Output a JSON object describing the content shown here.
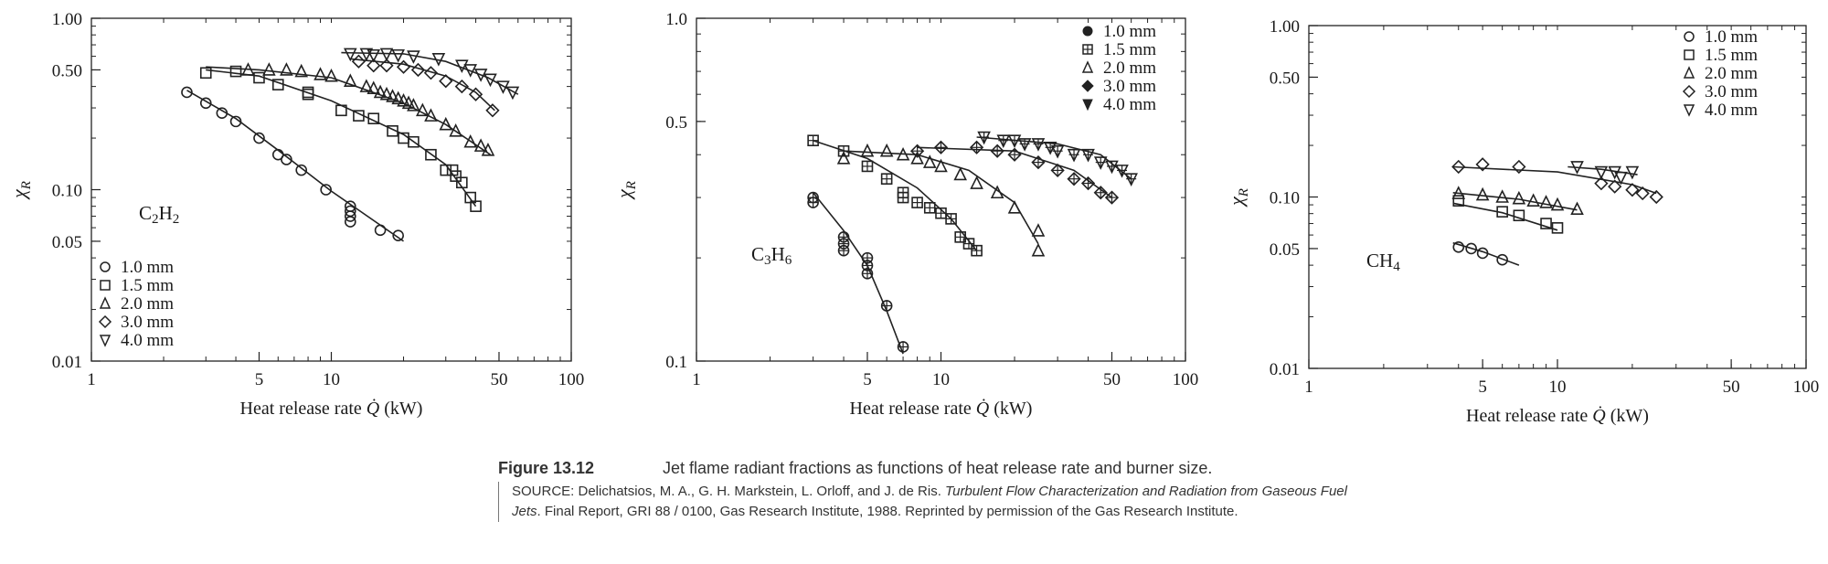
{
  "chart_data": [
    {
      "type": "scatter",
      "label": "C₂H₂",
      "xlabel": "Heat release rate Q̇ (kW)",
      "ylabel": "χR",
      "xlim": [
        1,
        100
      ],
      "ylim": [
        0.01,
        1
      ],
      "xscale": "log",
      "yscale": "log",
      "xticks": [
        1,
        5,
        10,
        50,
        100
      ],
      "xtick_labels": [
        "1",
        "5",
        "10",
        "50",
        "100"
      ],
      "yticks": [
        0.01,
        0.05,
        0.1,
        0.5,
        1.0
      ],
      "ytick_labels": [
        "0.01",
        "0.05",
        "0.10",
        "0.50",
        "1.00"
      ],
      "legend_position": "bottom-left",
      "grid": false,
      "series": [
        {
          "name": "4.0 mm",
          "marker": "triangle-down",
          "x": [
            12,
            14,
            15,
            17,
            19,
            22,
            28,
            35,
            38,
            42,
            46,
            52,
            57
          ],
          "y": [
            0.62,
            0.62,
            0.61,
            0.62,
            0.61,
            0.6,
            0.58,
            0.53,
            0.5,
            0.47,
            0.44,
            0.4,
            0.37
          ],
          "fit": [
            [
              11,
              0.63
            ],
            [
              20,
              0.62
            ],
            [
              30,
              0.56
            ],
            [
              45,
              0.45
            ],
            [
              60,
              0.36
            ]
          ]
        },
        {
          "name": "3.0 mm",
          "marker": "diamond",
          "x": [
            13,
            15,
            17,
            20,
            23,
            26,
            30,
            35,
            40,
            47
          ],
          "y": [
            0.56,
            0.53,
            0.53,
            0.52,
            0.5,
            0.48,
            0.43,
            0.4,
            0.36,
            0.29
          ],
          "fit": [
            [
              12,
              0.58
            ],
            [
              20,
              0.54
            ],
            [
              30,
              0.46
            ],
            [
              40,
              0.37
            ],
            [
              48,
              0.29
            ]
          ]
        },
        {
          "name": "2.0 mm",
          "marker": "triangle-up",
          "x": [
            4.5,
            5.5,
            6.5,
            7.5,
            9,
            10,
            12,
            14,
            15,
            16,
            17,
            18,
            19,
            20,
            21,
            22,
            24,
            26,
            30,
            33,
            38,
            42,
            45
          ],
          "y": [
            0.5,
            0.5,
            0.5,
            0.49,
            0.47,
            0.46,
            0.43,
            0.4,
            0.39,
            0.37,
            0.36,
            0.35,
            0.34,
            0.33,
            0.32,
            0.31,
            0.29,
            0.27,
            0.24,
            0.22,
            0.19,
            0.18,
            0.17
          ],
          "fit": [
            [
              3,
              0.52
            ],
            [
              5,
              0.5
            ],
            [
              10,
              0.45
            ],
            [
              20,
              0.32
            ],
            [
              30,
              0.24
            ],
            [
              46,
              0.16
            ]
          ]
        },
        {
          "name": "1.5 mm",
          "marker": "square",
          "x": [
            3,
            4,
            5,
            6,
            8,
            8,
            11,
            13,
            15,
            18,
            20,
            22,
            26,
            30,
            32,
            33,
            35,
            38,
            40
          ],
          "y": [
            0.48,
            0.49,
            0.45,
            0.41,
            0.36,
            0.37,
            0.29,
            0.27,
            0.26,
            0.22,
            0.2,
            0.19,
            0.16,
            0.13,
            0.13,
            0.12,
            0.11,
            0.09,
            0.08
          ],
          "fit": [
            [
              3,
              0.5
            ],
            [
              5,
              0.46
            ],
            [
              10,
              0.33
            ],
            [
              20,
              0.21
            ],
            [
              30,
              0.14
            ],
            [
              40,
              0.08
            ]
          ]
        },
        {
          "name": "1.0 mm",
          "marker": "circle",
          "x": [
            2.5,
            3,
            3.5,
            4,
            5,
            6,
            6.5,
            7.5,
            9.5,
            12,
            12,
            12,
            12,
            16,
            19
          ],
          "y": [
            0.37,
            0.32,
            0.28,
            0.25,
            0.2,
            0.16,
            0.15,
            0.13,
            0.1,
            0.08,
            0.075,
            0.07,
            0.065,
            0.058,
            0.054
          ],
          "fit": [
            [
              2.5,
              0.38
            ],
            [
              4,
              0.26
            ],
            [
              6,
              0.17
            ],
            [
              10,
              0.098
            ],
            [
              20,
              0.05
            ]
          ]
        }
      ]
    },
    {
      "type": "scatter",
      "label": "C₃H₆",
      "xlabel": "Heat release rate Q̇ (kW)",
      "ylabel": "χR",
      "xlim": [
        1,
        100
      ],
      "ylim": [
        0.1,
        1
      ],
      "xscale": "log",
      "yscale": "log",
      "xticks": [
        1,
        5,
        10,
        50,
        100
      ],
      "xtick_labels": [
        "1",
        "5",
        "10",
        "50",
        "100"
      ],
      "yticks": [
        0.1,
        0.5,
        1.0
      ],
      "ytick_labels": [
        "0.1",
        "0.5",
        "1.0"
      ],
      "legend_position": "top-right",
      "grid": false,
      "series": [
        {
          "name": "1.0 mm",
          "marker": "circle-cross",
          "x": [
            3,
            3,
            4,
            4,
            4,
            5,
            5,
            5,
            6,
            7
          ],
          "y": [
            0.3,
            0.29,
            0.23,
            0.22,
            0.21,
            0.2,
            0.19,
            0.18,
            0.145,
            0.11
          ],
          "fit": [
            [
              3,
              0.31
            ],
            [
              4,
              0.24
            ],
            [
              5,
              0.19
            ],
            [
              6,
              0.14
            ],
            [
              7,
              0.105
            ]
          ]
        },
        {
          "name": "1.5 mm",
          "marker": "square-cross",
          "x": [
            3,
            4,
            5,
            6,
            7,
            7,
            8,
            9,
            10,
            11,
            12,
            13,
            14
          ],
          "y": [
            0.44,
            0.41,
            0.37,
            0.34,
            0.31,
            0.3,
            0.29,
            0.28,
            0.27,
            0.26,
            0.23,
            0.22,
            0.21
          ],
          "fit": [
            [
              3,
              0.44
            ],
            [
              5,
              0.39
            ],
            [
              8,
              0.32
            ],
            [
              11,
              0.26
            ],
            [
              14,
              0.21
            ]
          ]
        },
        {
          "name": "2.0 mm",
          "marker": "triangle-up",
          "x": [
            4,
            5,
            6,
            7,
            8,
            9,
            10,
            12,
            14,
            17,
            20,
            25,
            25
          ],
          "y": [
            0.39,
            0.41,
            0.41,
            0.4,
            0.39,
            0.38,
            0.37,
            0.35,
            0.33,
            0.31,
            0.28,
            0.24,
            0.21
          ],
          "fit": [
            [
              4,
              0.41
            ],
            [
              8,
              0.4
            ],
            [
              13,
              0.36
            ],
            [
              20,
              0.29
            ],
            [
              25,
              0.22
            ]
          ]
        },
        {
          "name": "3.0 mm",
          "marker": "diamond-cross",
          "x": [
            8,
            10,
            14,
            17,
            20,
            25,
            30,
            35,
            40,
            45,
            50
          ],
          "y": [
            0.41,
            0.42,
            0.42,
            0.41,
            0.4,
            0.38,
            0.36,
            0.34,
            0.33,
            0.31,
            0.3
          ],
          "fit": [
            [
              8,
              0.42
            ],
            [
              20,
              0.41
            ],
            [
              35,
              0.36
            ],
            [
              50,
              0.3
            ]
          ]
        },
        {
          "name": "4.0 mm",
          "marker": "triangle-down-cross",
          "x": [
            15,
            18,
            20,
            22,
            25,
            28,
            30,
            35,
            40,
            45,
            50,
            55,
            60
          ],
          "y": [
            0.45,
            0.44,
            0.44,
            0.43,
            0.43,
            0.42,
            0.41,
            0.4,
            0.4,
            0.38,
            0.37,
            0.36,
            0.34
          ],
          "fit": [
            [
              14,
              0.45
            ],
            [
              30,
              0.43
            ],
            [
              45,
              0.4
            ],
            [
              60,
              0.34
            ]
          ]
        }
      ]
    },
    {
      "type": "scatter",
      "label": "CH₄",
      "xlabel": "Heat release rate Q̇ (kW)",
      "ylabel": "χR",
      "xlim": [
        1,
        100
      ],
      "ylim": [
        0.01,
        1
      ],
      "xscale": "log",
      "yscale": "log",
      "xticks": [
        1,
        5,
        10,
        50,
        100
      ],
      "xtick_labels": [
        "1",
        "5",
        "10",
        "50",
        "100"
      ],
      "yticks": [
        0.01,
        0.05,
        0.1,
        0.5,
        1.0
      ],
      "ytick_labels": [
        "0.01",
        "0.05",
        "0.10",
        "0.50",
        "1.00"
      ],
      "legend_position": "top-right",
      "grid": false,
      "series": [
        {
          "name": "1.0 mm",
          "marker": "circle",
          "x": [
            4,
            4.5,
            5,
            6
          ],
          "y": [
            0.051,
            0.05,
            0.047,
            0.043
          ],
          "fit": [
            [
              3.8,
              0.054
            ],
            [
              5,
              0.048
            ],
            [
              7,
              0.04
            ]
          ]
        },
        {
          "name": "1.5 mm",
          "marker": "square",
          "x": [
            4,
            6,
            7,
            9,
            10
          ],
          "y": [
            0.095,
            0.082,
            0.078,
            0.07,
            0.066
          ],
          "fit": [
            [
              3.8,
              0.092
            ],
            [
              6,
              0.081
            ],
            [
              10,
              0.064
            ]
          ]
        },
        {
          "name": "2.0 mm",
          "marker": "triangle-up",
          "x": [
            4,
            5,
            6,
            7,
            8,
            9,
            10,
            12
          ],
          "y": [
            0.105,
            0.103,
            0.1,
            0.098,
            0.095,
            0.093,
            0.09,
            0.085
          ],
          "fit": [
            [
              3.8,
              0.106
            ],
            [
              7,
              0.097
            ],
            [
              12,
              0.084
            ]
          ]
        },
        {
          "name": "3.0 mm",
          "marker": "diamond",
          "x": [
            4,
            5,
            7,
            15,
            17,
            20,
            22,
            25
          ],
          "y": [
            0.15,
            0.155,
            0.15,
            0.12,
            0.115,
            0.11,
            0.105,
            0.1
          ],
          "fit": [
            [
              3.8,
              0.15
            ],
            [
              10,
              0.14
            ],
            [
              20,
              0.118
            ],
            [
              25,
              0.105
            ]
          ]
        },
        {
          "name": "4.0 mm",
          "marker": "triangle-down",
          "x": [
            12,
            15,
            17,
            18,
            20
          ],
          "y": [
            0.15,
            0.14,
            0.14,
            0.13,
            0.14
          ],
          "fit": [
            [
              11,
              0.15
            ],
            [
              15,
              0.145
            ],
            [
              21,
              0.135
            ]
          ]
        }
      ]
    }
  ],
  "caption": {
    "figure_label": "Figure 13.12",
    "title": "Jet flame radiant fractions as functions of heat release rate and burner size.",
    "source_prefix": "SOURCE: Delichatsios, M. A., G. H. Markstein, L. Orloff, and J. de Ris. ",
    "source_italic": "Turbulent Flow Characterization and Radiation from Gaseous Fuel Jets",
    "source_suffix": ". Final Report, GRI 88 / 0100, Gas Research Institute, 1988. Reprinted by permission of the Gas Research Institute."
  }
}
